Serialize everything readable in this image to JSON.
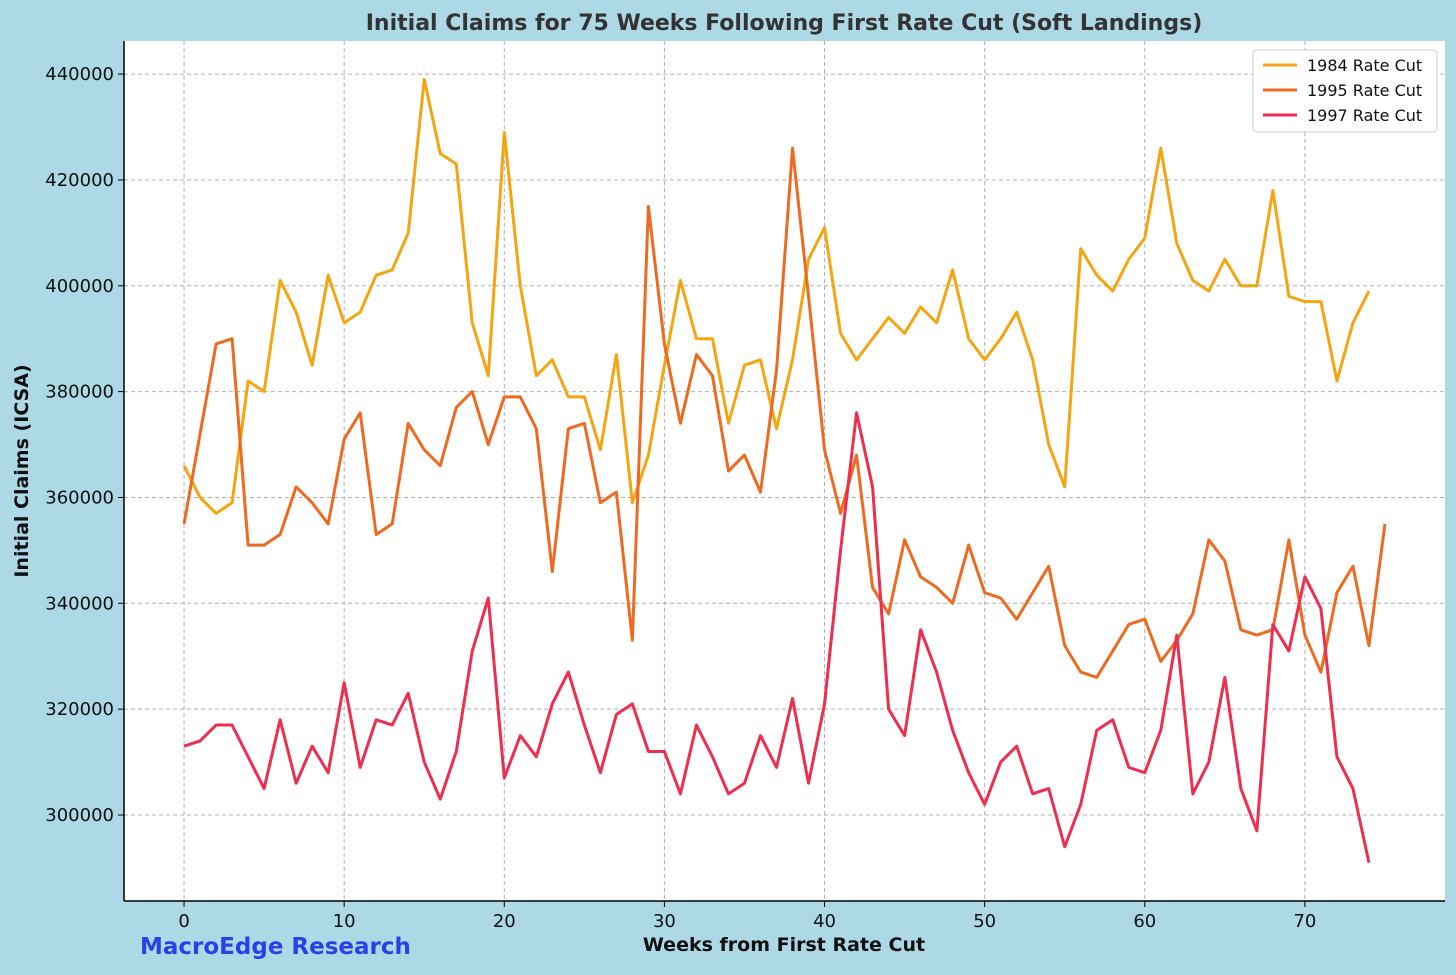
{
  "chart_data": {
    "type": "line",
    "title": "Initial Claims for 75 Weeks Following First Rate Cut (Soft Landings)",
    "xlabel": "Weeks from First Rate Cut",
    "ylabel": "Initial Claims (ICSA)",
    "xlim": [
      -3.75,
      78.75
    ],
    "ylim": [
      283750,
      446250
    ],
    "xticks": [
      0,
      10,
      20,
      30,
      40,
      50,
      60,
      70
    ],
    "yticks": [
      300000,
      320000,
      340000,
      360000,
      380000,
      400000,
      420000,
      440000
    ],
    "grid": true,
    "legend_position": "upper right",
    "watermark": "MacroEdge Research",
    "colors": {
      "background": "#add8e6",
      "plot_background": "#ffffff",
      "watermark": "#2f3fe8",
      "title": "#333333"
    },
    "series": [
      {
        "name": "1984 Rate Cut",
        "color": "#f5a511",
        "x_start": 0,
        "values": [
          366000,
          360000,
          357000,
          359000,
          382000,
          380000,
          401000,
          395000,
          385000,
          402000,
          393000,
          395000,
          402000,
          403000,
          410000,
          439000,
          425000,
          423000,
          393000,
          383000,
          429000,
          400000,
          383000,
          386000,
          379000,
          379000,
          369000,
          387000,
          359000,
          368000,
          385000,
          401000,
          390000,
          390000,
          374000,
          385000,
          386000,
          373000,
          386000,
          405000,
          411000,
          391000,
          386000,
          390000,
          394000,
          391000,
          396000,
          393000,
          403000,
          390000,
          386000,
          390000,
          395000,
          386000,
          370000,
          362000,
          407000,
          402000,
          399000,
          405000,
          409000,
          426000,
          408000,
          401000,
          399000,
          405000,
          400000,
          400000,
          418000,
          398000,
          397000,
          397000,
          382000,
          393000,
          399000
        ]
      },
      {
        "name": "1995 Rate Cut",
        "color": "#ef6a21",
        "x_start": 0,
        "values": [
          355000,
          372000,
          389000,
          390000,
          351000,
          351000,
          353000,
          362000,
          359000,
          355000,
          371000,
          376000,
          353000,
          355000,
          374000,
          369000,
          366000,
          377000,
          380000,
          370000,
          379000,
          379000,
          373000,
          346000,
          373000,
          374000,
          359000,
          361000,
          333000,
          415000,
          389000,
          374000,
          387000,
          383000,
          365000,
          368000,
          361000,
          384000,
          426000,
          398000,
          369000,
          357000,
          368000,
          343000,
          338000,
          352000,
          345000,
          343000,
          340000,
          351000,
          342000,
          341000,
          337000,
          342000,
          347000,
          332000,
          327000,
          326000,
          331000,
          336000,
          337000,
          329000,
          333000,
          338000,
          352000,
          348000,
          335000,
          334000,
          335000,
          352000,
          334000,
          327000,
          342000,
          347000,
          332000,
          355000
        ]
      },
      {
        "name": "1997 Rate Cut",
        "color": "#ee2e4f",
        "x_start": 0,
        "values": [
          313000,
          314000,
          317000,
          317000,
          311000,
          305000,
          318000,
          306000,
          313000,
          308000,
          325000,
          309000,
          318000,
          317000,
          323000,
          310000,
          303000,
          312000,
          331000,
          341000,
          307000,
          315000,
          311000,
          321000,
          327000,
          317000,
          308000,
          319000,
          321000,
          312000,
          312000,
          304000,
          317000,
          311000,
          304000,
          306000,
          315000,
          309000,
          322000,
          306000,
          321000,
          350000,
          376000,
          362000,
          320000,
          315000,
          335000,
          327000,
          316000,
          308000,
          302000,
          310000,
          313000,
          304000,
          305000,
          294000,
          302000,
          316000,
          318000,
          309000,
          308000,
          316000,
          334000,
          304000,
          310000,
          326000,
          305000,
          297000,
          336000,
          331000,
          345000,
          339000,
          311000,
          305000,
          291000
        ]
      }
    ]
  }
}
